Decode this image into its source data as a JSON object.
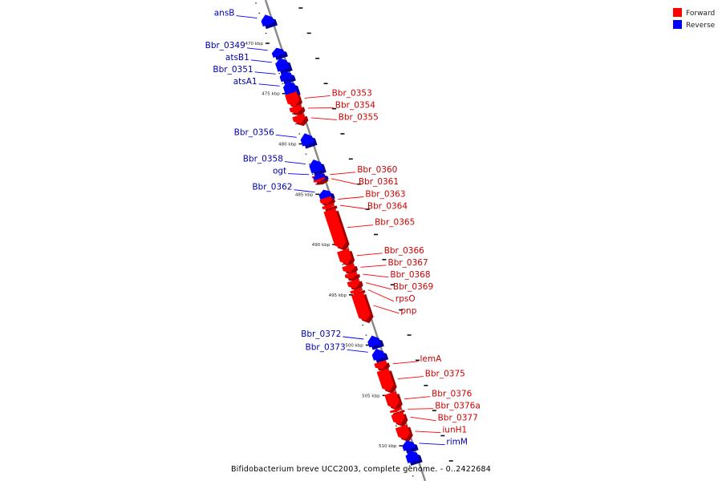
{
  "colors": {
    "forward": "#ff0000",
    "forward_dark": "#a00000",
    "reverse": "#0000ff",
    "reverse_dark": "#00009a",
    "axis": "#888888",
    "forward_label": "#cc0000",
    "reverse_label": "#0000aa"
  },
  "legend": [
    {
      "key": "forward",
      "label": "Forward"
    },
    {
      "key": "reverse",
      "label": "Reverse"
    }
  ],
  "caption": "Bifidobacterium breve UCC2003, complete genome. - 0..2422684",
  "axis": {
    "ticks": [
      {
        "label": "470 kbp",
        "kbp": 470
      },
      {
        "label": "475 kbp",
        "kbp": 475
      },
      {
        "label": "480 kbp",
        "kbp": 480
      },
      {
        "label": "485 kbp",
        "kbp": 485
      },
      {
        "label": "490 kbp",
        "kbp": 490
      },
      {
        "label": "495 kbp",
        "kbp": 495
      },
      {
        "label": "500 kbp",
        "kbp": 500
      },
      {
        "label": "505 kbp",
        "kbp": 505
      },
      {
        "label": "510 kbp",
        "kbp": 510
      }
    ]
  },
  "genes": [
    {
      "name": "ansB",
      "strand": "reverse",
      "start": 467.0,
      "end": 468.0
    },
    {
      "name": "Bbr_0349",
      "strand": "reverse",
      "start": 470.3,
      "end": 471.1
    },
    {
      "name": "atsB1",
      "strand": "reverse",
      "start": 471.3,
      "end": 472.5
    },
    {
      "name": "Bbr_0351",
      "strand": "reverse",
      "start": 472.6,
      "end": 473.5
    },
    {
      "name": "atsA1",
      "strand": "reverse",
      "start": 473.6,
      "end": 474.9
    },
    {
      "name": "Bbr_0353",
      "strand": "forward",
      "start": 474.8,
      "end": 476.1
    },
    {
      "name": "Bbr_0354",
      "strand": "forward",
      "start": 476.1,
      "end": 476.8
    },
    {
      "name": "Bbr_0355",
      "strand": "forward",
      "start": 477.0,
      "end": 477.8
    },
    {
      "name": "Bbr_0356",
      "strand": "reverse",
      "start": 478.8,
      "end": 479.9
    },
    {
      "name": "Bbr_0358",
      "strand": "reverse",
      "start": 481.4,
      "end": 482.6
    },
    {
      "name": "Bbr_0360",
      "strand": "forward",
      "start": 482.9,
      "end": 483.2
    },
    {
      "name": "ogt",
      "strand": "reverse",
      "start": 482.8,
      "end": 483.3
    },
    {
      "name": "Bbr_0361",
      "strand": "forward",
      "start": 483.3,
      "end": 483.6
    },
    {
      "name": "Bbr_0362",
      "strand": "reverse",
      "start": 484.4,
      "end": 485.2
    },
    {
      "name": "Bbr_0363",
      "strand": "forward",
      "start": 485.2,
      "end": 485.8
    },
    {
      "name": "Bbr_0364",
      "strand": "forward",
      "start": 485.9,
      "end": 486.3
    },
    {
      "name": "Bbr_0365",
      "strand": "forward",
      "start": 486.4,
      "end": 490.2
    },
    {
      "name": "Bbr_0366",
      "strand": "forward",
      "start": 490.4,
      "end": 491.8
    },
    {
      "name": "Bbr_0367",
      "strand": "forward",
      "start": 491.9,
      "end": 492.6
    },
    {
      "name": "Bbr_0368",
      "strand": "forward",
      "start": 492.7,
      "end": 493.2
    },
    {
      "name": "Bbr_0369",
      "strand": "forward",
      "start": 493.4,
      "end": 494.2
    },
    {
      "name": "rpsO",
      "strand": "forward",
      "start": 494.3,
      "end": 494.7
    },
    {
      "name": "pnp",
      "strand": "forward",
      "start": 494.7,
      "end": 497.4
    },
    {
      "name": "Bbr_0372",
      "strand": "reverse",
      "start": 498.9,
      "end": 499.9
    },
    {
      "name": "Bbr_0373",
      "strand": "reverse",
      "start": 500.2,
      "end": 501.2
    },
    {
      "name": "lemA",
      "strand": "forward",
      "start": 501.5,
      "end": 502.2
    },
    {
      "name": "Bbr_0375",
      "strand": "forward",
      "start": 502.3,
      "end": 504.4
    },
    {
      "name": "Bbr_0376",
      "strand": "forward",
      "start": 504.6,
      "end": 506.1
    },
    {
      "name": "Bbr_0376a",
      "strand": "forward",
      "start": 506.2,
      "end": 506.5
    },
    {
      "name": "Bbr_0377",
      "strand": "forward",
      "start": 506.6,
      "end": 507.7
    },
    {
      "name": "iunH1",
      "strand": "forward",
      "start": 507.9,
      "end": 509.2
    },
    {
      "name": "rimM",
      "strand": "reverse",
      "start": 509.3,
      "end": 510.2
    },
    {
      "name": "",
      "strand": "reverse",
      "start": 510.3,
      "end": 511.4
    }
  ]
}
